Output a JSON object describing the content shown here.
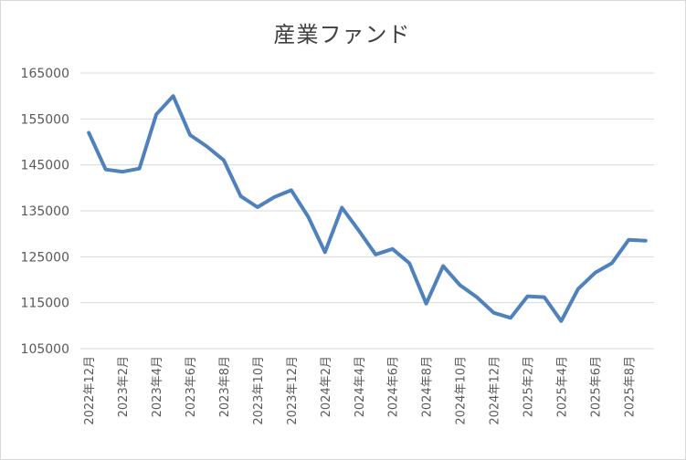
{
  "chart_data": {
    "type": "line",
    "title": "産業ファンド",
    "xlabel": "",
    "ylabel": "",
    "ylim": [
      105000,
      165000
    ],
    "yticks": [
      105000,
      115000,
      125000,
      135000,
      145000,
      155000,
      165000
    ],
    "ytick_labels": [
      "105000",
      "115000",
      "125000",
      "135000",
      "145000",
      "155000",
      "165000"
    ],
    "grid": true,
    "legend": "none",
    "line_color": "#4f81bd",
    "x": [
      "2022年12月",
      "2023年1月",
      "2023年2月",
      "2023年3月",
      "2023年4月",
      "2023年5月",
      "2023年6月",
      "2023年7月",
      "2023年8月",
      "2023年9月",
      "2023年10月",
      "2023年11月",
      "2023年12月",
      "2024年1月",
      "2024年2月",
      "2024年3月",
      "2024年4月",
      "2024年5月",
      "2024年6月",
      "2024年7月",
      "2024年8月",
      "2024年9月",
      "2024年10月",
      "2024年11月",
      "2024年12月",
      "2025年1月",
      "2025年2月",
      "2025年3月",
      "2025年4月",
      "2025年5月",
      "2025年6月",
      "2025年7月",
      "2025年8月",
      "2025年9月"
    ],
    "x_tick_labels": [
      "2022年12月",
      "2023年2月",
      "2023年4月",
      "2023年6月",
      "2023年8月",
      "2023年10月",
      "2023年12月",
      "2024年2月",
      "2024年4月",
      "2024年6月",
      "2024年8月",
      "2024年10月",
      "2024年12月",
      "2025年2月",
      "2025年4月",
      "2025年6月",
      "2025年8月"
    ],
    "series": [
      {
        "values": [
          152000,
          144000,
          143500,
          144200,
          156000,
          160000,
          151500,
          149000,
          146000,
          138200,
          135800,
          138000,
          139500,
          133700,
          126000,
          135700,
          130700,
          125500,
          126700,
          123600,
          114800,
          123000,
          118800,
          116200,
          112800,
          111700,
          116400,
          116200,
          111000,
          118000,
          121500,
          123600,
          128700,
          128500
        ]
      }
    ]
  }
}
